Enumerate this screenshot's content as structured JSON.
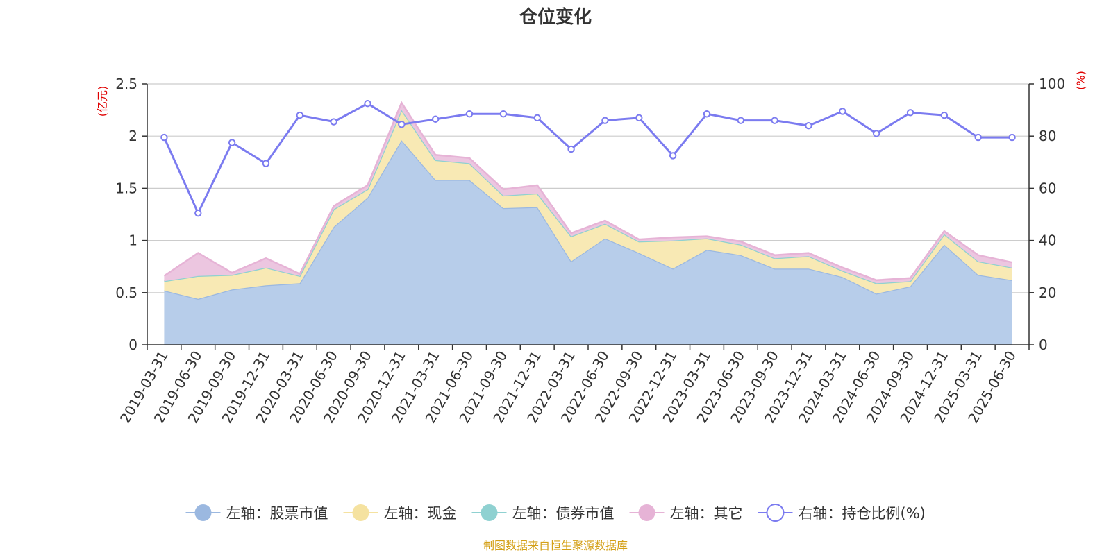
{
  "chart_data": {
    "type": "area",
    "title": "仓位变化",
    "left_unit": "(亿元)",
    "right_unit": "(%)",
    "x": [
      "2019-03-31",
      "2019-06-30",
      "2019-09-30",
      "2019-12-31",
      "2020-03-31",
      "2020-06-30",
      "2020-09-30",
      "2020-12-31",
      "2021-03-31",
      "2021-06-30",
      "2021-09-30",
      "2021-12-31",
      "2022-03-31",
      "2022-06-30",
      "2022-09-30",
      "2022-12-31",
      "2023-03-31",
      "2023-06-30",
      "2023-09-30",
      "2023-12-31",
      "2024-03-31",
      "2024-06-30",
      "2024-09-30",
      "2024-12-31",
      "2025-03-31",
      "2025-06-30"
    ],
    "left_axis": {
      "min": 0,
      "max": 2.5,
      "ticks": [
        "0",
        "0.5",
        "1",
        "1.5",
        "2",
        "2.5"
      ]
    },
    "right_axis": {
      "min": 0,
      "max": 100,
      "ticks": [
        "0",
        "20",
        "40",
        "60",
        "80",
        "100"
      ]
    },
    "series": [
      {
        "name": "左轴：股票市值",
        "axis": "left",
        "stack": true,
        "color": "#9bb8e0",
        "fill": "#b7cdea",
        "values": [
          0.52,
          0.44,
          0.53,
          0.57,
          0.59,
          1.13,
          1.41,
          1.96,
          1.58,
          1.58,
          1.31,
          1.32,
          0.8,
          1.02,
          0.88,
          0.73,
          0.91,
          0.86,
          0.73,
          0.73,
          0.65,
          0.49,
          0.56,
          0.96,
          0.67,
          0.62
        ]
      },
      {
        "name": "左轴：现金",
        "axis": "left",
        "stack": true,
        "color": "#f5e2a0",
        "fill": "#f8e9b4",
        "values": [
          0.09,
          0.22,
          0.14,
          0.17,
          0.07,
          0.17,
          0.08,
          0.29,
          0.19,
          0.16,
          0.12,
          0.13,
          0.24,
          0.14,
          0.11,
          0.27,
          0.11,
          0.1,
          0.1,
          0.12,
          0.06,
          0.1,
          0.05,
          0.1,
          0.13,
          0.12
        ]
      },
      {
        "name": "左轴：债券市值",
        "axis": "left",
        "stack": true,
        "color": "#8fd1d1",
        "fill": "#a8dede",
        "values": [
          0,
          0,
          0,
          0,
          0,
          0,
          0,
          0,
          0,
          0,
          0,
          0,
          0,
          0,
          0,
          0,
          0,
          0,
          0,
          0,
          0,
          0,
          0,
          0,
          0,
          0
        ]
      },
      {
        "name": "左轴：其它",
        "axis": "left",
        "stack": true,
        "color": "#e6b3d6",
        "fill": "#ecc6e0",
        "values": [
          0.05,
          0.22,
          0.02,
          0.09,
          0.02,
          0.03,
          0.04,
          0.07,
          0.05,
          0.05,
          0.06,
          0.08,
          0.03,
          0.03,
          0.02,
          0.03,
          0.02,
          0.03,
          0.03,
          0.03,
          0.03,
          0.03,
          0.03,
          0.03,
          0.06,
          0.05
        ]
      },
      {
        "name": "右轴：持仓比例(%)",
        "axis": "right",
        "type": "line",
        "color": "#7b7bf0",
        "values": [
          79.5,
          50.5,
          77.5,
          69.5,
          88,
          85.5,
          92.5,
          84.5,
          86.5,
          88.5,
          88.5,
          87,
          75,
          86,
          87,
          72.5,
          88.5,
          86,
          86,
          84,
          89.5,
          81,
          89,
          88,
          79.5,
          79.5
        ]
      }
    ],
    "grid": true,
    "legend_position": "bottom"
  },
  "source_note": "制图数据来自恒生聚源数据库"
}
